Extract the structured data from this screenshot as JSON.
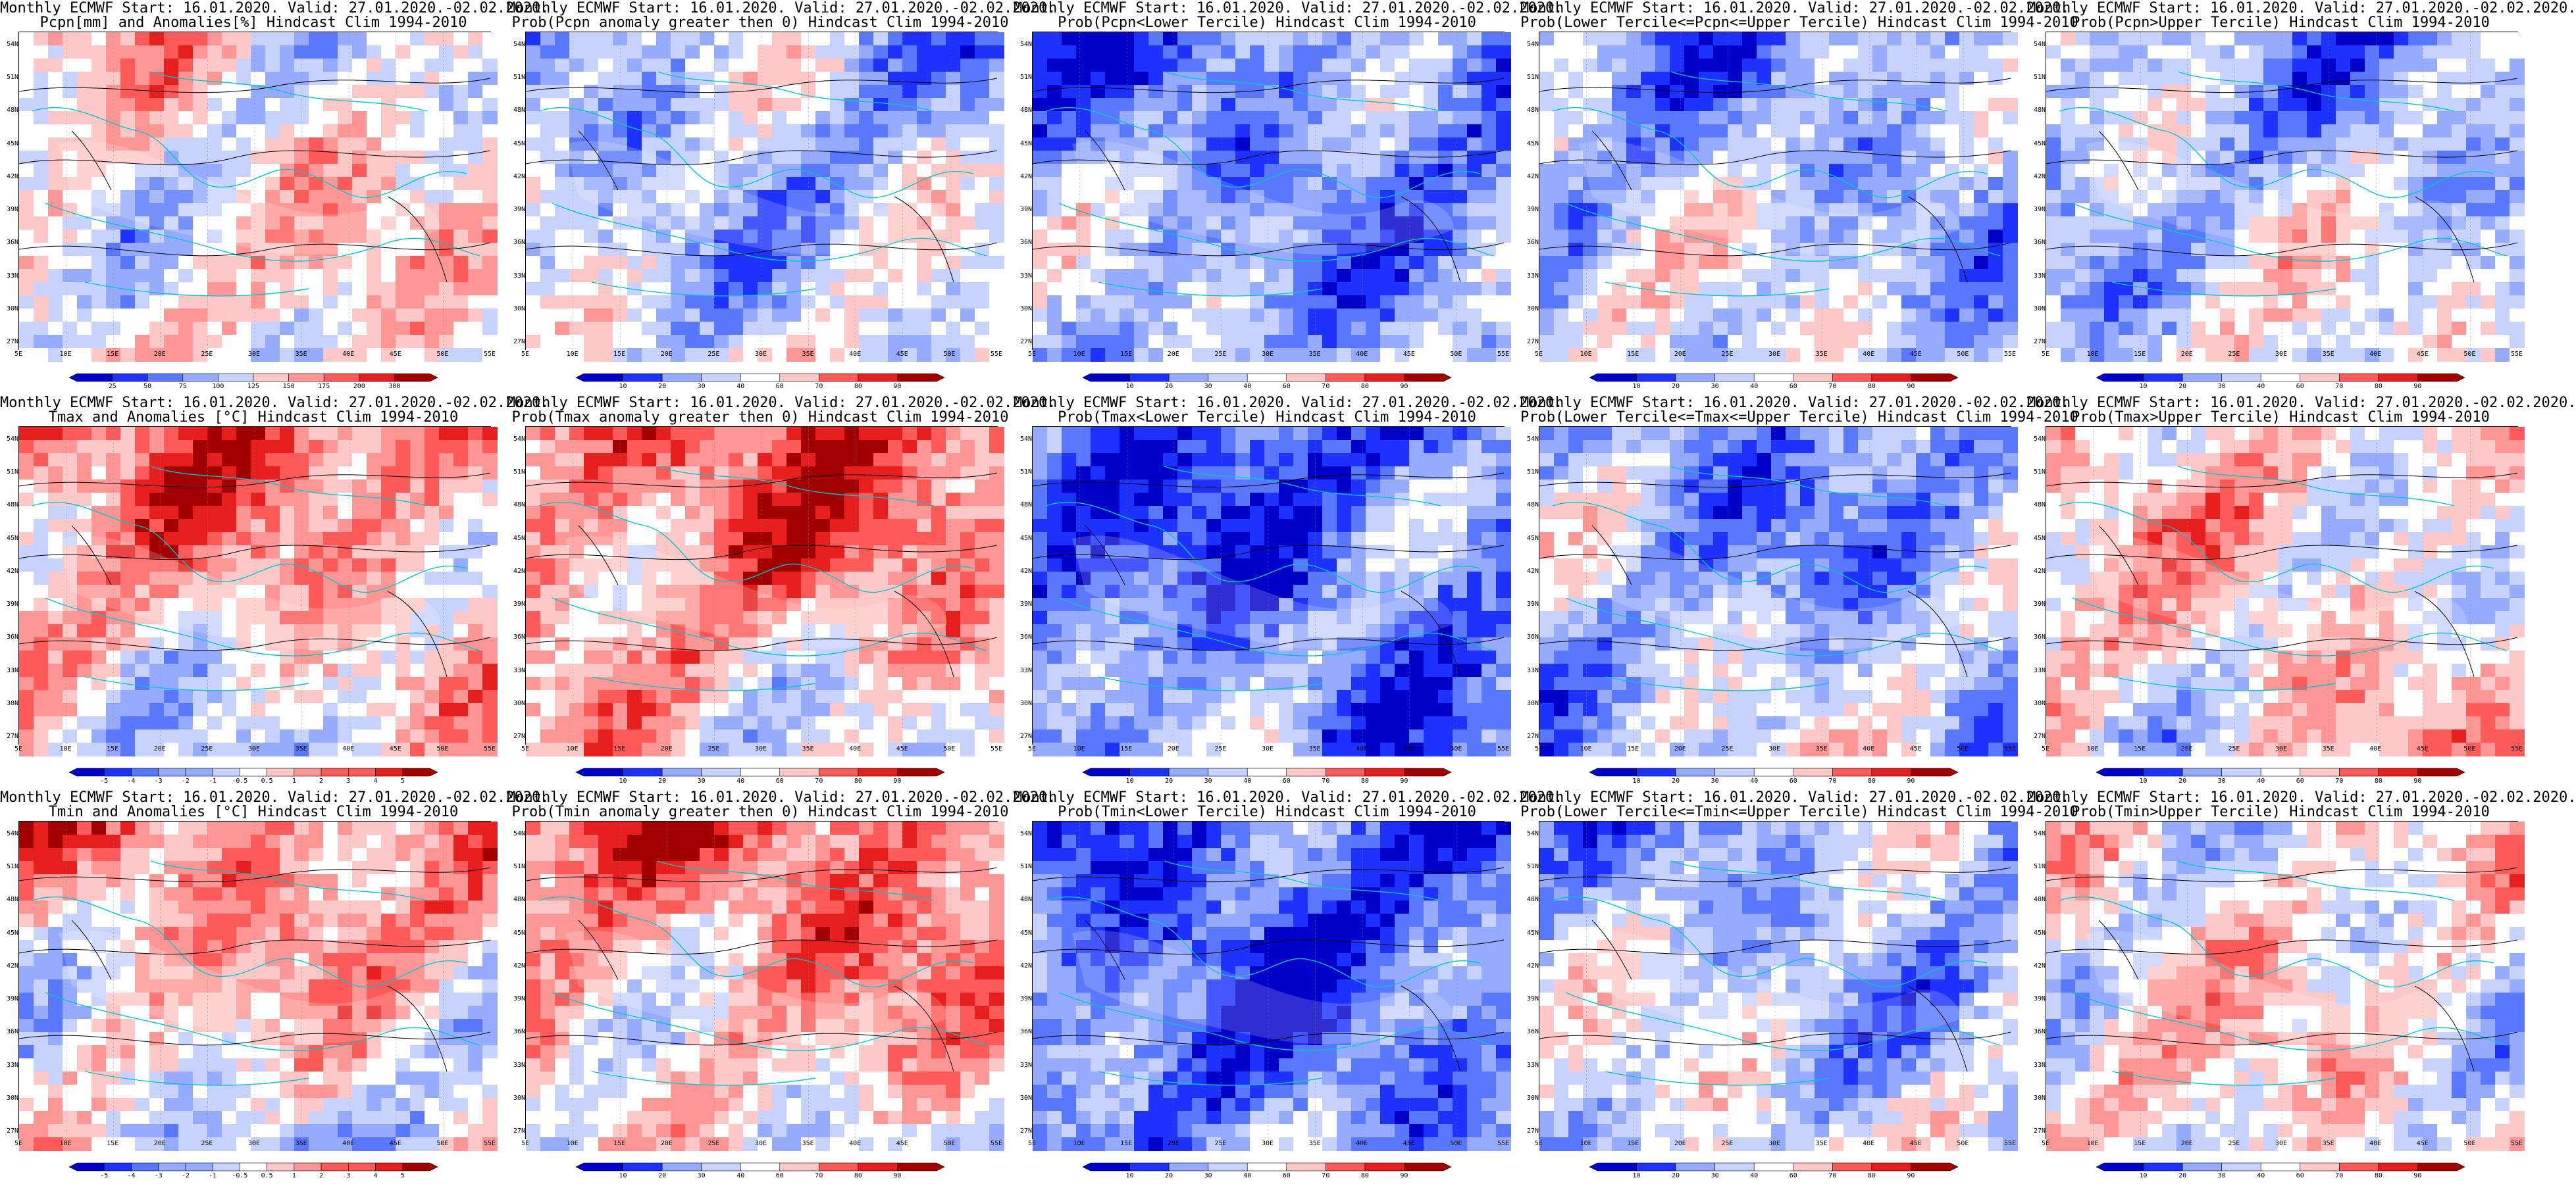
{
  "latitudes": [
    "54N",
    "51N",
    "48N",
    "45N",
    "42N",
    "39N",
    "36N",
    "33N",
    "30N",
    "27N"
  ],
  "longitudes": [
    "5E",
    "10E",
    "15E",
    "20E",
    "25E",
    "30E",
    "35E",
    "40E",
    "45E",
    "50E",
    "55E"
  ],
  "colors": {
    "blue": [
      "#0000c8",
      "#1e32ff",
      "#5a78ff",
      "#96aaff",
      "#c8d2ff"
    ],
    "white": "#ffffff",
    "red": [
      "#ffc8c8",
      "#ff9696",
      "#ff5a5a",
      "#e61e1e",
      "#a00000"
    ],
    "coast": "#00c8c8",
    "contour": "#000000"
  },
  "panels": [
    {
      "title1": "Monthly ECMWF Start: 16.01.2020. Valid: 27.01.2020.-02.02.2020.",
      "title2": "Pcpn[mm] and Anomalies[%] Hindcast Clim 1994-2010",
      "cb_type": "anom",
      "ticks": [
        "25",
        "50",
        "75",
        "100",
        "125",
        "150",
        "175",
        "200",
        "300"
      ],
      "bias": 0.05,
      "seed": 11
    },
    {
      "title1": "Monthly ECMWF Start: 16.01.2020. Valid: 27.01.2020.-02.02.2020.",
      "title2": "Prob(Pcpn anomaly greater then 0) Hindcast Clim 1994-2010",
      "cb_type": "prob",
      "ticks": [
        "10",
        "20",
        "30",
        "40",
        "60",
        "70",
        "80",
        "90"
      ],
      "bias": -0.35,
      "seed": 12
    },
    {
      "title1": "Monthly ECMWF Start: 16.01.2020. Valid: 27.01.2020.-02.02.2020.",
      "title2": "Prob(Pcpn<Lower Tercile) Hindcast Clim 1994-2010",
      "cb_type": "prob",
      "ticks": [
        "10",
        "20",
        "30",
        "40",
        "60",
        "70",
        "80",
        "90"
      ],
      "bias": -0.55,
      "seed": 13
    },
    {
      "title1": "Monthly ECMWF Start: 16.01.2020. Valid: 27.01.2020.-02.02.2020.",
      "title2": "Prob(Lower Tercile<=Pcpn<=Upper Tercile) Hindcast Clim 1994-2010",
      "cb_type": "prob",
      "ticks": [
        "10",
        "20",
        "30",
        "40",
        "60",
        "70",
        "80",
        "90"
      ],
      "bias": -0.4,
      "seed": 14
    },
    {
      "title1": "Monthly ECMWF Start: 16.01.2020. Valid: 27.01.2020.-02.02.2020.",
      "title2": "Prob(Pcpn>Upper Tercile) Hindcast Clim 1994-2010",
      "cb_type": "prob",
      "ticks": [
        "10",
        "20",
        "30",
        "40",
        "60",
        "70",
        "80",
        "90"
      ],
      "bias": -0.35,
      "seed": 15
    },
    {
      "title1": "Monthly ECMWF Start: 16.01.2020. Valid: 27.01.2020.-02.02.2020.",
      "title2": "Tmax and Anomalies [°C] Hindcast Clim 1994-2010",
      "cb_type": "anom",
      "ticks": [
        "-5",
        "-4",
        "-3",
        "-2",
        "-1",
        "-0.5",
        "0.5",
        "1",
        "2",
        "3",
        "4",
        "5"
      ],
      "bias": 0.55,
      "seed": 21
    },
    {
      "title1": "Monthly ECMWF Start: 16.01.2020. Valid: 27.01.2020.-02.02.2020.",
      "title2": "Prob(Tmax anomaly greater then 0) Hindcast Clim 1994-2010",
      "cb_type": "prob",
      "ticks": [
        "10",
        "20",
        "30",
        "40",
        "60",
        "70",
        "80",
        "90"
      ],
      "bias": 0.65,
      "seed": 22
    },
    {
      "title1": "Monthly ECMWF Start: 16.01.2020. Valid: 27.01.2020.-02.02.2020.",
      "title2": "Prob(Tmax<Lower Tercile) Hindcast Clim 1994-2010",
      "cb_type": "prob",
      "ticks": [
        "10",
        "20",
        "30",
        "40",
        "60",
        "70",
        "80",
        "90"
      ],
      "bias": -0.7,
      "seed": 23
    },
    {
      "title1": "Monthly ECMWF Start: 16.01.2020. Valid: 27.01.2020.-02.02.2020.",
      "title2": "Prob(Lower Tercile<=Tmax<=Upper Tercile) Hindcast Clim 1994-2010",
      "cb_type": "prob",
      "ticks": [
        "10",
        "20",
        "30",
        "40",
        "60",
        "70",
        "80",
        "90"
      ],
      "bias": -0.45,
      "seed": 24
    },
    {
      "title1": "Monthly ECMWF Start: 16.01.2020. Valid: 27.01.2020.-02.02.2020.",
      "title2": "Prob(Tmax>Upper Tercile) Hindcast Clim 1994-2010",
      "cb_type": "prob",
      "ticks": [
        "10",
        "20",
        "30",
        "40",
        "60",
        "70",
        "80",
        "90"
      ],
      "bias": 0.1,
      "seed": 25
    },
    {
      "title1": "Monthly ECMWF Start: 16.01.2020. Valid: 27.01.2020.-02.02.2020.",
      "title2": "Tmin and Anomalies [°C] Hindcast Clim 1994-2010",
      "cb_type": "anom",
      "ticks": [
        "-5",
        "-4",
        "-3",
        "-2",
        "-1",
        "-0.5",
        "0.5",
        "1",
        "2",
        "3",
        "4",
        "5"
      ],
      "bias": 0.45,
      "seed": 31
    },
    {
      "title1": "Monthly ECMWF Start: 16.01.2020. Valid: 27.01.2020.-02.02.2020.",
      "title2": "Prob(Tmin anomaly greater then 0) Hindcast Clim 1994-2010",
      "cb_type": "prob",
      "ticks": [
        "10",
        "20",
        "30",
        "40",
        "60",
        "70",
        "80",
        "90"
      ],
      "bias": 0.6,
      "seed": 32
    },
    {
      "title1": "Monthly ECMWF Start: 16.01.2020. Valid: 27.01.2020.-02.02.2020.",
      "title2": "Prob(Tmin<Lower Tercile) Hindcast Clim 1994-2010",
      "cb_type": "prob",
      "ticks": [
        "10",
        "20",
        "30",
        "40",
        "60",
        "70",
        "80",
        "90"
      ],
      "bias": -0.75,
      "seed": 33
    },
    {
      "title1": "Monthly ECMWF Start: 16.01.2020. Valid: 27.01.2020.-02.02.2020.",
      "title2": "Prob(Lower Tercile<=Tmin<=Upper Tercile) Hindcast Clim 1994-2010",
      "cb_type": "prob",
      "ticks": [
        "10",
        "20",
        "30",
        "40",
        "60",
        "70",
        "80",
        "90"
      ],
      "bias": -0.35,
      "seed": 34
    },
    {
      "title1": "Monthly ECMWF Start: 16.01.2020. Valid: 27.01.2020.-02.02.2020.",
      "title2": "Prob(Tmin>Upper Tercile) Hindcast Clim 1994-2010",
      "cb_type": "prob",
      "ticks": [
        "10",
        "20",
        "30",
        "40",
        "60",
        "70",
        "80",
        "90"
      ],
      "bias": 0.05,
      "seed": 35
    }
  ]
}
